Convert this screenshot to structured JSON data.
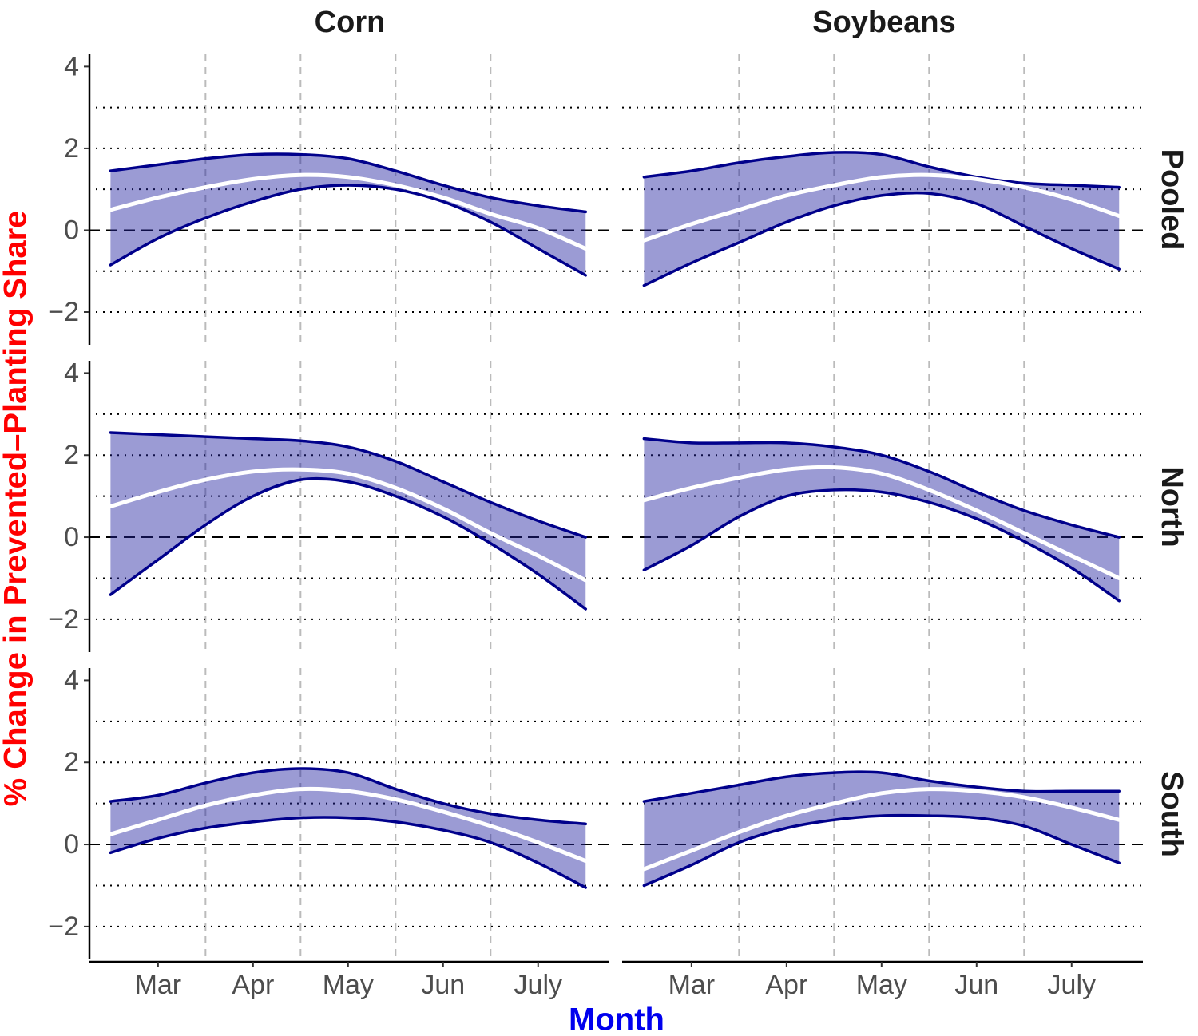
{
  "columns": [
    "Corn",
    "Soybeans"
  ],
  "rows": [
    "Pooled",
    "North",
    "South"
  ],
  "x_label": "Month",
  "y_label": "% Change in Prevented–Planting Share",
  "chart_data": [
    {
      "type": "line",
      "xlim": [
        2.27,
        7.75
      ],
      "ylim": [
        -2.8,
        4.3
      ],
      "yticks": [
        {
          "value": -2,
          "label": "−2"
        },
        0,
        2,
        4
      ],
      "hlines": [
        -2,
        -1,
        0,
        1,
        2,
        3
      ],
      "vlines": [
        3.5,
        4.5,
        5.5,
        6.5
      ],
      "band": {
        "color": "#2222a0",
        "opacity": 0.45
      },
      "x": [
        2.5,
        3,
        3.5,
        4,
        4.5,
        5,
        5.5,
        6,
        6.5,
        7,
        7.5
      ],
      "series": [
        {
          "color": "#00008b",
          "values": [
            1.45,
            1.6,
            1.75,
            1.85,
            1.85,
            1.75,
            1.45,
            1.1,
            0.8,
            0.6,
            0.45
          ]
        },
        {
          "color": "#00008b",
          "values": [
            -0.85,
            -0.2,
            0.3,
            0.7,
            1.0,
            1.1,
            1.0,
            0.7,
            0.2,
            -0.45,
            -1.1
          ]
        },
        {
          "color": "#ffffff",
          "values": [
            0.5,
            0.8,
            1.05,
            1.25,
            1.35,
            1.3,
            1.1,
            0.8,
            0.4,
            0.05,
            -0.45
          ]
        }
      ]
    },
    {
      "type": "line",
      "xlim": [
        2.27,
        7.75
      ],
      "ylim": [
        -2.8,
        4.3
      ],
      "hlines": [
        -2,
        -1,
        0,
        1,
        2,
        3
      ],
      "vlines": [
        3.5,
        4.5,
        5.5,
        6.5
      ],
      "band": {
        "color": "#2222a0",
        "opacity": 0.45
      },
      "x": [
        2.5,
        3,
        3.5,
        4,
        4.5,
        5,
        5.5,
        6,
        6.5,
        7,
        7.5
      ],
      "series": [
        {
          "color": "#00008b",
          "values": [
            1.3,
            1.45,
            1.65,
            1.8,
            1.9,
            1.85,
            1.55,
            1.3,
            1.15,
            1.1,
            1.05
          ]
        },
        {
          "color": "#00008b",
          "values": [
            -1.35,
            -0.8,
            -0.3,
            0.2,
            0.6,
            0.85,
            0.9,
            0.65,
            0.1,
            -0.45,
            -0.95
          ]
        },
        {
          "color": "#ffffff",
          "values": [
            -0.25,
            0.15,
            0.5,
            0.85,
            1.1,
            1.3,
            1.35,
            1.25,
            1.05,
            0.75,
            0.35
          ]
        }
      ]
    },
    {
      "type": "line",
      "xlim": [
        2.27,
        7.75
      ],
      "ylim": [
        -2.8,
        4.3
      ],
      "yticks": [
        {
          "value": -2,
          "label": "−2"
        },
        0,
        2,
        4
      ],
      "hlines": [
        -2,
        -1,
        0,
        1,
        2,
        3
      ],
      "vlines": [
        3.5,
        4.5,
        5.5,
        6.5
      ],
      "band": {
        "color": "#2222a0",
        "opacity": 0.45
      },
      "x": [
        2.5,
        3,
        3.5,
        4,
        4.5,
        5,
        5.5,
        6,
        6.5,
        7,
        7.5
      ],
      "series": [
        {
          "color": "#00008b",
          "values": [
            2.55,
            2.5,
            2.45,
            2.4,
            2.35,
            2.2,
            1.85,
            1.35,
            0.85,
            0.4,
            0.0
          ]
        },
        {
          "color": "#00008b",
          "values": [
            -1.4,
            -0.55,
            0.3,
            1.0,
            1.4,
            1.35,
            1.0,
            0.5,
            -0.15,
            -0.9,
            -1.75
          ]
        },
        {
          "color": "#ffffff",
          "values": [
            0.75,
            1.1,
            1.4,
            1.6,
            1.65,
            1.55,
            1.2,
            0.7,
            0.1,
            -0.45,
            -1.05
          ]
        }
      ]
    },
    {
      "type": "line",
      "xlim": [
        2.27,
        7.75
      ],
      "ylim": [
        -2.8,
        4.3
      ],
      "hlines": [
        -2,
        -1,
        0,
        1,
        2,
        3
      ],
      "vlines": [
        3.5,
        4.5,
        5.5,
        6.5
      ],
      "band": {
        "color": "#2222a0",
        "opacity": 0.45
      },
      "x": [
        2.5,
        3,
        3.5,
        4,
        4.5,
        5,
        5.5,
        6,
        6.5,
        7,
        7.5
      ],
      "series": [
        {
          "color": "#00008b",
          "values": [
            2.4,
            2.3,
            2.3,
            2.3,
            2.2,
            2.0,
            1.6,
            1.1,
            0.65,
            0.3,
            0.0
          ]
        },
        {
          "color": "#00008b",
          "values": [
            -0.8,
            -0.2,
            0.5,
            1.0,
            1.15,
            1.1,
            0.85,
            0.45,
            -0.1,
            -0.75,
            -1.55
          ]
        },
        {
          "color": "#ffffff",
          "values": [
            0.9,
            1.2,
            1.45,
            1.65,
            1.7,
            1.55,
            1.15,
            0.65,
            0.1,
            -0.45,
            -1.0
          ]
        }
      ]
    },
    {
      "type": "line",
      "xlim": [
        2.27,
        7.75
      ],
      "ylim": [
        -2.8,
        4.3
      ],
      "yticks": [
        {
          "value": -2,
          "label": "−2"
        },
        0,
        2,
        4
      ],
      "xticks": [
        {
          "value": 3,
          "label": "Mar"
        },
        {
          "value": 4,
          "label": "Apr"
        },
        {
          "value": 5,
          "label": "May"
        },
        {
          "value": 6,
          "label": "Jun"
        },
        {
          "value": 7,
          "label": "July"
        }
      ],
      "hlines": [
        -2,
        -1,
        0,
        1,
        2,
        3
      ],
      "vlines": [
        3.5,
        4.5,
        5.5,
        6.5
      ],
      "band": {
        "color": "#2222a0",
        "opacity": 0.45
      },
      "x": [
        2.5,
        3,
        3.5,
        4,
        4.5,
        5,
        5.5,
        6,
        6.5,
        7,
        7.5
      ],
      "series": [
        {
          "color": "#00008b",
          "values": [
            1.05,
            1.2,
            1.5,
            1.75,
            1.85,
            1.75,
            1.35,
            1.0,
            0.75,
            0.6,
            0.5
          ]
        },
        {
          "color": "#00008b",
          "values": [
            -0.2,
            0.15,
            0.4,
            0.55,
            0.65,
            0.65,
            0.55,
            0.35,
            0.05,
            -0.45,
            -1.05
          ]
        },
        {
          "color": "#ffffff",
          "values": [
            0.25,
            0.6,
            0.95,
            1.2,
            1.35,
            1.3,
            1.1,
            0.8,
            0.45,
            0.05,
            -0.4
          ]
        }
      ]
    },
    {
      "type": "line",
      "xlim": [
        2.27,
        7.75
      ],
      "ylim": [
        -2.8,
        4.3
      ],
      "xticks": [
        {
          "value": 3,
          "label": "Mar"
        },
        {
          "value": 4,
          "label": "Apr"
        },
        {
          "value": 5,
          "label": "May"
        },
        {
          "value": 6,
          "label": "Jun"
        },
        {
          "value": 7,
          "label": "July"
        }
      ],
      "hlines": [
        -2,
        -1,
        0,
        1,
        2,
        3
      ],
      "vlines": [
        3.5,
        4.5,
        5.5,
        6.5
      ],
      "band": {
        "color": "#2222a0",
        "opacity": 0.45
      },
      "x": [
        2.5,
        3,
        3.5,
        4,
        4.5,
        5,
        5.5,
        6,
        6.5,
        7,
        7.5
      ],
      "series": [
        {
          "color": "#00008b",
          "values": [
            1.05,
            1.25,
            1.45,
            1.65,
            1.75,
            1.75,
            1.55,
            1.4,
            1.3,
            1.3,
            1.3
          ]
        },
        {
          "color": "#00008b",
          "values": [
            -1.0,
            -0.5,
            0.05,
            0.4,
            0.6,
            0.7,
            0.7,
            0.65,
            0.45,
            0.0,
            -0.45
          ]
        },
        {
          "color": "#ffffff",
          "values": [
            -0.6,
            -0.15,
            0.3,
            0.7,
            1.0,
            1.25,
            1.35,
            1.3,
            1.15,
            0.9,
            0.6
          ]
        }
      ]
    }
  ]
}
